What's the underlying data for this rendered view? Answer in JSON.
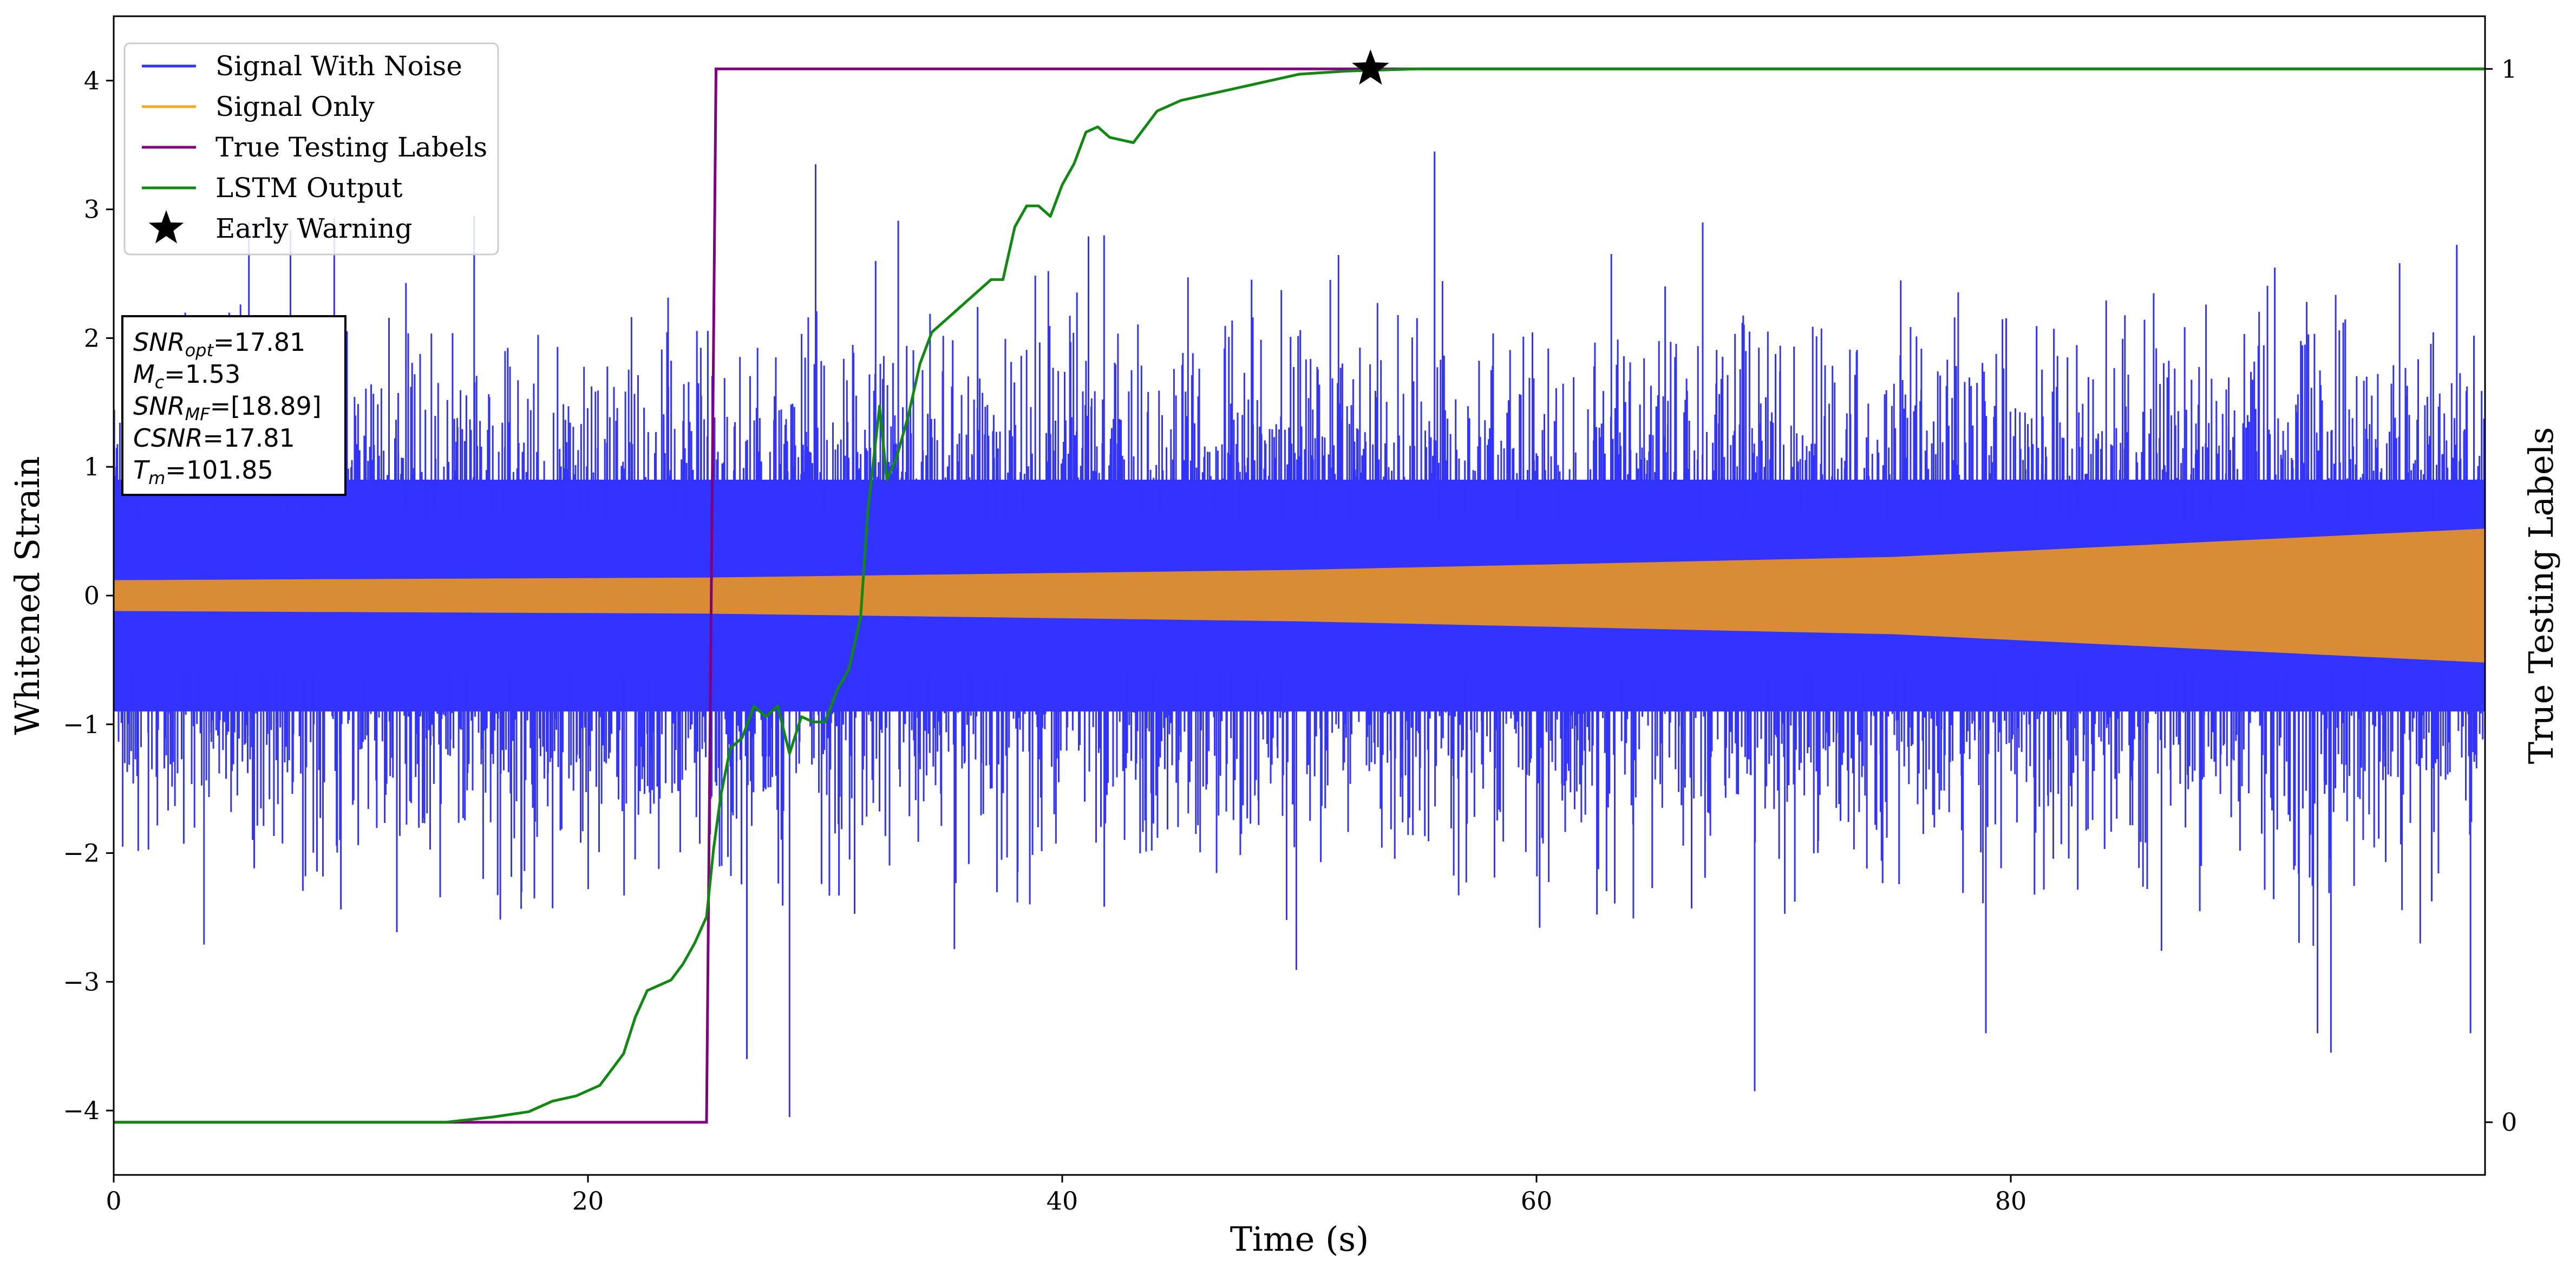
{
  "chart_data": {
    "type": "line",
    "xlabel": "Time (s)",
    "ylabel": "Whitened Strain",
    "y2label": "True Testing Labels",
    "xlim": [
      0,
      100
    ],
    "ylim": [
      -4.5,
      4.5
    ],
    "y2lim": [
      -0.05,
      1.05
    ],
    "x_ticks": [
      "0",
      "20",
      "40",
      "60",
      "80"
    ],
    "x_tick_values": [
      0,
      20,
      40,
      60,
      80
    ],
    "y_ticks": [
      "−4",
      "−3",
      "−2",
      "−1",
      "0",
      "1",
      "2",
      "3",
      "4"
    ],
    "y_tick_values": [
      -4,
      -3,
      -2,
      -1,
      0,
      1,
      2,
      3,
      4
    ],
    "y2_ticks": [
      "0",
      "1"
    ],
    "y2_tick_values": [
      0,
      1
    ],
    "legend": [
      {
        "name": "Signal With Noise",
        "color": "#3333ff",
        "marker": "line"
      },
      {
        "name": "Signal Only",
        "color": "#f5a623",
        "marker": "line"
      },
      {
        "name": "True Testing Labels",
        "color": "#800080",
        "marker": "line"
      },
      {
        "name": "LSTM Output",
        "color": "#118811",
        "marker": "line"
      },
      {
        "name": "Early Warning",
        "color": "#000000",
        "marker": "star"
      }
    ],
    "legend_position": "top-left",
    "series": [
      {
        "name": "Signal With Noise",
        "axis": "left",
        "color": "#3333ff",
        "description_stats": {
          "core_amplitude": 0.9,
          "peak_max": 3.45,
          "peak_min": -4.05
        }
      },
      {
        "name": "Signal Only",
        "axis": "left",
        "color": "#d98c33",
        "envelope": {
          "x": [
            0,
            25,
            50,
            75,
            100
          ],
          "amplitude": [
            0.12,
            0.14,
            0.2,
            0.3,
            0.52
          ]
        }
      },
      {
        "name": "True Testing Labels",
        "axis": "right",
        "color": "#800080",
        "x": [
          0,
          25.0,
          25.4,
          100
        ],
        "y": [
          0,
          0,
          1,
          1
        ]
      },
      {
        "name": "LSTM Output",
        "axis": "right",
        "color": "#118811",
        "x": [
          0,
          14,
          16,
          17.5,
          18.5,
          19.5,
          20.5,
          21.5,
          22,
          22.5,
          23,
          23.5,
          24,
          24.5,
          25,
          25.3,
          25.6,
          26,
          26.5,
          27,
          27.5,
          28,
          28.5,
          29,
          29.5,
          30,
          30.5,
          31,
          31.5,
          31.8,
          32,
          32.3,
          32.6,
          33,
          33.5,
          34,
          34.5,
          35,
          36,
          37,
          37.5,
          38,
          38.5,
          39,
          39.5,
          40,
          40.5,
          41,
          41.5,
          42,
          43,
          44,
          44.5,
          45,
          46,
          47,
          48,
          49,
          50,
          52,
          55,
          60,
          100
        ],
        "y": [
          0,
          0,
          0.005,
          0.01,
          0.02,
          0.025,
          0.035,
          0.065,
          0.1,
          0.125,
          0.13,
          0.135,
          0.15,
          0.17,
          0.195,
          0.26,
          0.31,
          0.355,
          0.365,
          0.395,
          0.385,
          0.395,
          0.35,
          0.385,
          0.38,
          0.38,
          0.41,
          0.43,
          0.48,
          0.58,
          0.62,
          0.68,
          0.61,
          0.63,
          0.67,
          0.72,
          0.75,
          0.76,
          0.78,
          0.8,
          0.8,
          0.85,
          0.87,
          0.87,
          0.86,
          0.89,
          0.91,
          0.94,
          0.945,
          0.935,
          0.93,
          0.96,
          0.965,
          0.97,
          0.975,
          0.98,
          0.985,
          0.99,
          0.995,
          0.998,
          1.0,
          1.0,
          1.0
        ]
      },
      {
        "name": "Early Warning",
        "axis": "right",
        "color": "#000000",
        "x": [
          53.0
        ],
        "y": [
          1.0
        ]
      }
    ],
    "annotation": {
      "lines": [
        {
          "sym": "SNR",
          "sub": "opt",
          "value": "=17.81"
        },
        {
          "sym": "M",
          "sub": "c",
          "value": "=1.53"
        },
        {
          "sym": "SNR",
          "sub": "MF",
          "value": "=[18.89]"
        },
        {
          "sym": "CSNR",
          "sub": "",
          "value": "=17.81"
        },
        {
          "sym": "T",
          "sub": "m",
          "value": "=101.85"
        }
      ]
    },
    "grid": false
  }
}
